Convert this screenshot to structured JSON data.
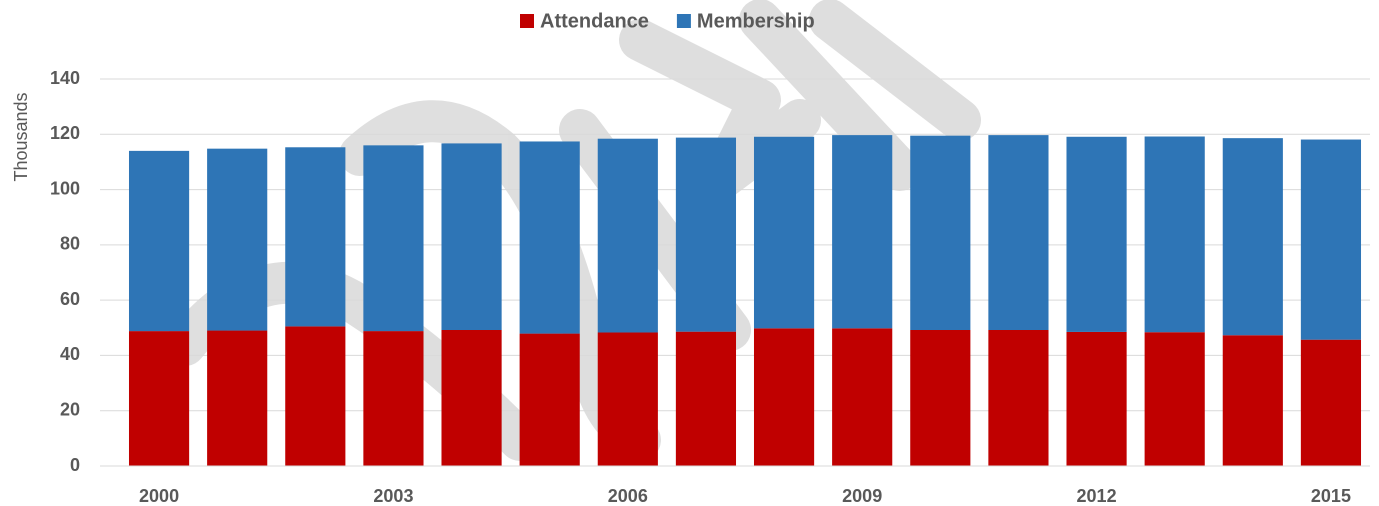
{
  "chart_data": {
    "type": "stacked_bar",
    "y_label": "Thousands",
    "categories": [
      "2000",
      null,
      null,
      "2003",
      null,
      null,
      "2006",
      null,
      null,
      "2009",
      null,
      null,
      "2012",
      null,
      null,
      "2015"
    ],
    "series": [
      {
        "name": "Attendance",
        "color": "#c00000",
        "values": [
          48.8,
          49,
          50.5,
          48.8,
          49.2,
          47.9,
          48.3,
          48.6,
          49.8,
          49.8,
          49.2,
          49.2,
          48.5,
          48.4,
          47.3,
          45.7
        ]
      },
      {
        "name": "Membership",
        "color": "#2e75b6",
        "values": [
          65.2,
          65.8,
          64.8,
          67.2,
          67.5,
          69.5,
          70.1,
          70.2,
          69.3,
          69.9,
          70.3,
          70.5,
          70.6,
          70.8,
          71.3,
          72.4
        ]
      }
    ],
    "ylim": [
      0,
      140
    ],
    "yticks": [
      0,
      20,
      40,
      60,
      80,
      100,
      120,
      140
    ],
    "grid": true,
    "legend": "top"
  }
}
